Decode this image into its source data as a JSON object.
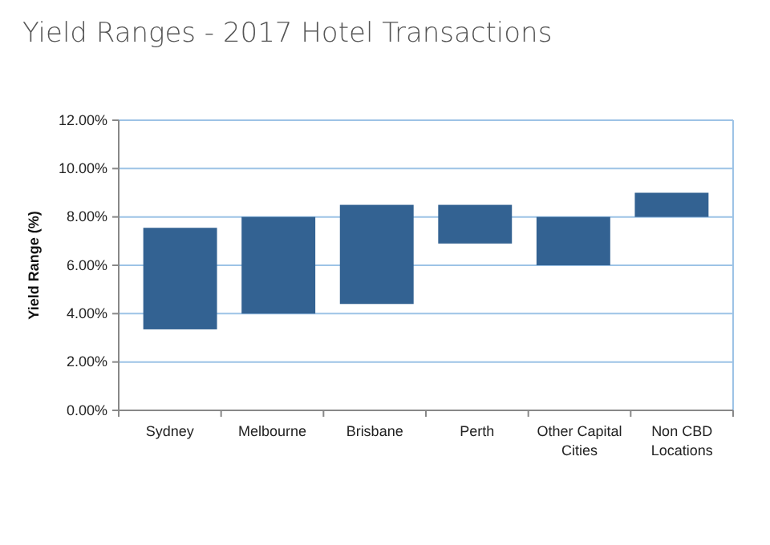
{
  "chart_data": {
    "type": "bar",
    "title": "Yield Ranges - 2017 Hotel Transactions",
    "ylabel": "Yield Range (%)",
    "categories": [
      "Sydney",
      "Melbourne",
      "Brisbane",
      "Perth",
      "Other Capital Cities",
      "Non CBD Locations"
    ],
    "base": [
      3.35,
      4,
      4.4,
      6.9,
      6,
      8
    ],
    "values": [
      4.2,
      4,
      4.1,
      1.6,
      2,
      1
    ],
    "color": "#336292",
    "ylim": [
      0,
      12
    ],
    "yticks": [
      {
        "value": 0,
        "label": "0.00%"
      },
      {
        "value": 2,
        "label": "2.00%"
      },
      {
        "value": 4,
        "label": "4.00%"
      },
      {
        "value": 6,
        "label": "6.00%"
      },
      {
        "value": 8,
        "label": "8.00%"
      },
      {
        "value": 10,
        "label": "10.00%"
      },
      {
        "value": 12,
        "label": "12.00%"
      }
    ],
    "grid": "y"
  }
}
